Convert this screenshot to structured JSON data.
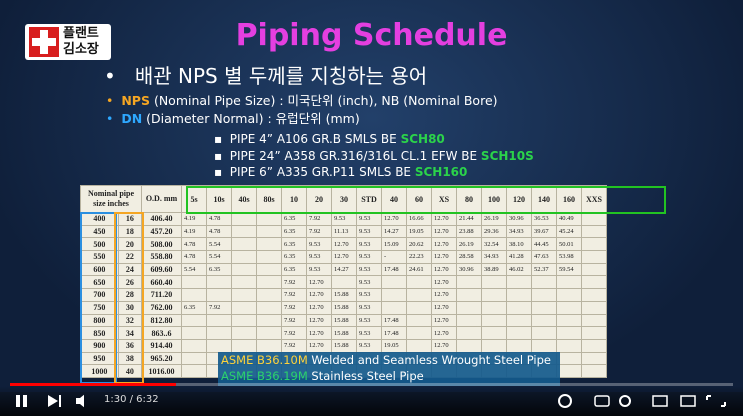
{
  "logo": {
    "line1": "플랜트",
    "line2": "김소장"
  },
  "slide": {
    "title": "Piping Schedule",
    "bullet": "배관 NPS 별 두께를 지칭하는 용어",
    "items": [
      {
        "term": "NPS",
        "text": "(Nominal Pipe Size) : 미국단위 (inch), NB (Nominal Bore)"
      },
      {
        "term": "DN",
        "text": "(Diameter Normal)  : 유럽단위 (mm)"
      }
    ],
    "specs": [
      {
        "text": "PIPE 4” A106 GR.B SMLS BE",
        "sch": "SCH80"
      },
      {
        "text": "PIPE 24” A358 GR.316/316L CL.1 EFW BE",
        "sch": "SCH10S"
      },
      {
        "text": "PIPE 6” A335 GR.P11 SMLS BE",
        "sch": "SCH160"
      }
    ]
  },
  "table": {
    "header": {
      "nominal": "Nominal pipe size inches",
      "od": "O.D. mm",
      "schedules": [
        "5s",
        "10s",
        "40s",
        "80s",
        "10",
        "20",
        "30",
        "STD",
        "40",
        "60",
        "XS",
        "80",
        "100",
        "120",
        "140",
        "160",
        "XXS"
      ]
    },
    "rows": [
      [
        "400",
        "16",
        "406.40",
        "4.19",
        "4.78",
        null,
        null,
        "6.35",
        "7.92",
        "9.53",
        "9.53",
        "12.70",
        "16.66",
        "12.70",
        "21.44",
        "26.19",
        "30.96",
        "36.53",
        "40.49",
        null
      ],
      [
        "450",
        "18",
        "457.20",
        "4.19",
        "4.78",
        null,
        null,
        "6.35",
        "7.92",
        "11.13",
        "9.53",
        "14.27",
        "19.05",
        "12.70",
        "23.88",
        "29.36",
        "34.93",
        "39.67",
        "45.24",
        null
      ],
      [
        "500",
        "20",
        "508.00",
        "4.78",
        "5.54",
        null,
        null,
        "6.35",
        "9.53",
        "12.70",
        "9.53",
        "15.09",
        "20.62",
        "12.70",
        "26.19",
        "32.54",
        "38.10",
        "44.45",
        "50.01",
        null
      ],
      [
        "550",
        "22",
        "558.80",
        "4.78",
        "5.54",
        null,
        null,
        "6.35",
        "9.53",
        "12.70",
        "9.53",
        "-",
        "22.23",
        "12.70",
        "28.58",
        "34.93",
        "41.28",
        "47.63",
        "53.98",
        null
      ],
      [
        "600",
        "24",
        "609.60",
        "5.54",
        "6.35",
        null,
        null,
        "6.35",
        "9.53",
        "14.27",
        "9.53",
        "17.48",
        "24.61",
        "12.70",
        "30.96",
        "38.89",
        "46.02",
        "52.37",
        "59.54",
        null
      ],
      [
        "650",
        "26",
        "660.40",
        null,
        null,
        null,
        null,
        "7.92",
        "12.70",
        null,
        "9.53",
        null,
        null,
        "12.70",
        null,
        null,
        null,
        null,
        null,
        null
      ],
      [
        "700",
        "28",
        "711.20",
        null,
        null,
        null,
        null,
        "7.92",
        "12.70",
        "15.88",
        "9.53",
        null,
        null,
        "12.70",
        null,
        null,
        null,
        null,
        null,
        null
      ],
      [
        "750",
        "30",
        "762.00",
        "6.35",
        "7.92",
        null,
        null,
        "7.92",
        "12.70",
        "15.88",
        "9.53",
        null,
        null,
        "12.70",
        null,
        null,
        null,
        null,
        null,
        null
      ],
      [
        "800",
        "32",
        "812.80",
        null,
        null,
        null,
        null,
        "7.92",
        "12.70",
        "15.88",
        "9.53",
        "17.48",
        null,
        "12.70",
        null,
        null,
        null,
        null,
        null,
        null
      ],
      [
        "850",
        "34",
        "863..6",
        null,
        null,
        null,
        null,
        "7.92",
        "12.70",
        "15.88",
        "9.53",
        "17.48",
        null,
        "12.70",
        null,
        null,
        null,
        null,
        null,
        null
      ],
      [
        "900",
        "36",
        "914.40",
        null,
        null,
        null,
        null,
        "7.92",
        "12.70",
        "15.88",
        "9.53",
        "19.05",
        null,
        "12.70",
        null,
        null,
        null,
        null,
        null,
        null
      ],
      [
        "950",
        "38",
        "965.20",
        null,
        null,
        null,
        null,
        null,
        null,
        null,
        null,
        null,
        null,
        null,
        null,
        null,
        null,
        null,
        null,
        null
      ],
      [
        "1000",
        "40",
        "1016.00",
        null,
        null,
        null,
        null,
        null,
        null,
        null,
        null,
        null,
        null,
        null,
        null,
        null,
        null,
        null,
        null,
        null
      ]
    ]
  },
  "caption": [
    {
      "code": "ASME B36.10M",
      "text": "Welded and Seamless Wrought Steel Pipe"
    },
    {
      "code": "ASME B36.19M",
      "text": "Stainless Steel Pipe"
    }
  ],
  "player": {
    "time": "1:30 / 6:32"
  }
}
